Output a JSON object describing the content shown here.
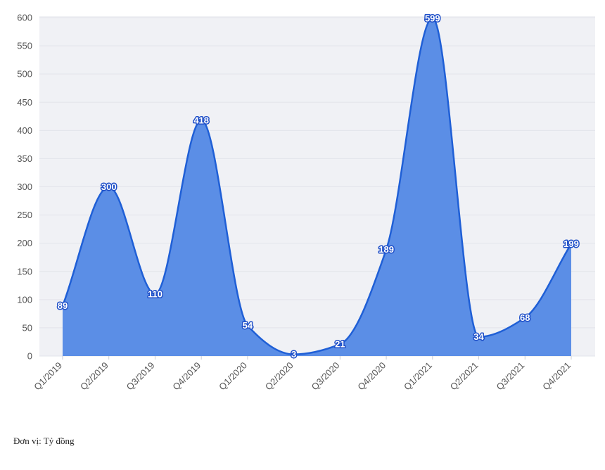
{
  "chart_data": {
    "type": "area",
    "categories": [
      "Q1/2019",
      "Q2/2019",
      "Q3/2019",
      "Q4/2019",
      "Q1/2020",
      "Q2/2020",
      "Q3/2020",
      "Q4/2020",
      "Q1/2021",
      "Q2/2021",
      "Q3/2021",
      "Q4/2021"
    ],
    "series": [
      {
        "values": [
          89,
          300,
          110,
          418,
          54,
          3,
          21,
          189,
          599,
          34,
          68,
          199
        ]
      }
    ],
    "ylim": [
      0,
      600
    ],
    "yticks": [
      0,
      50,
      100,
      150,
      200,
      250,
      300,
      350,
      400,
      450,
      500,
      550,
      600
    ],
    "grid": true,
    "smooth": true,
    "data_labels": true,
    "colors": {
      "fill": "#5b8ee6",
      "line": "#1f5fd6",
      "label_outline": "#1f4fc8",
      "plot_bg": "#f0f1f5"
    }
  },
  "footnote": "Đơn vị: Tỷ đồng"
}
